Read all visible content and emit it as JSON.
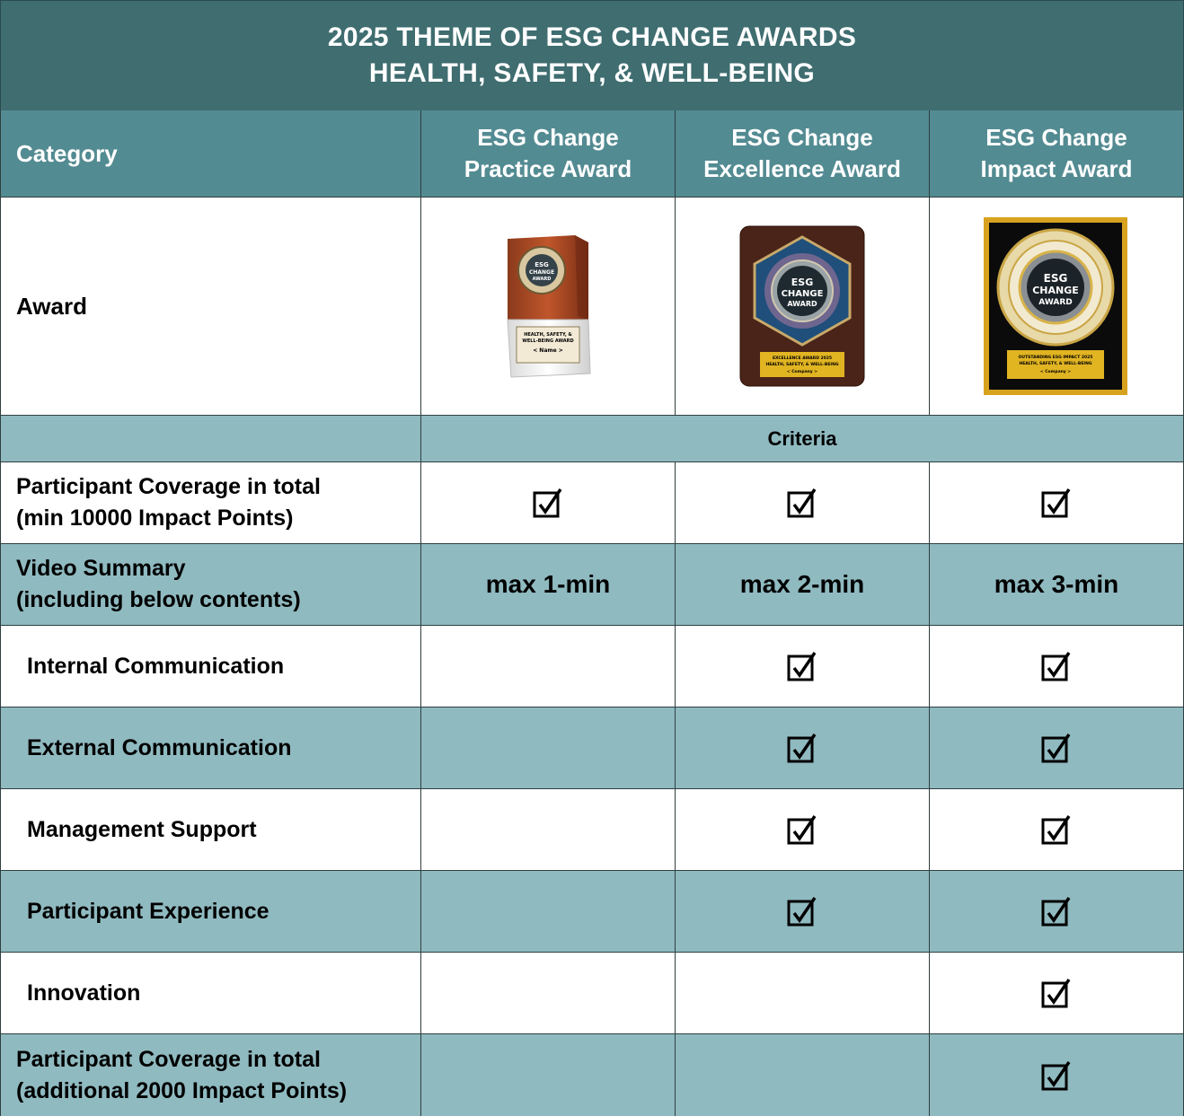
{
  "banner": {
    "line1": "2025 THEME OF ESG CHANGE AWARDS",
    "line2": "HEALTH, SAFETY, & WELL-BEING"
  },
  "header": {
    "category": "Category",
    "columns": [
      {
        "line1": "ESG Change",
        "line2": "Practice Award"
      },
      {
        "line1": "ESG Change",
        "line2": "Excellence Award"
      },
      {
        "line1": "ESG Change",
        "line2": "Impact Award"
      }
    ]
  },
  "award_row": {
    "label": "Award",
    "images": [
      {
        "icon": "practice-award-trophy-icon",
        "seal_lines": [
          "ESG",
          "CHANGE",
          "AWARD"
        ],
        "plate_lines": [
          "HEALTH, SAFETY, &",
          "WELL-BEING AWARD",
          "< Name >"
        ]
      },
      {
        "icon": "excellence-award-plaque-icon",
        "seal_lines": [
          "ESG",
          "CHANGE",
          "AWARD"
        ],
        "plate_lines": [
          "EXCELLENCE AWARD 2025",
          "HEALTH, SAFETY, & WELL-BEING",
          "< Company >"
        ]
      },
      {
        "icon": "impact-award-frame-icon",
        "seal_lines": [
          "ESG",
          "CHANGE",
          "AWARD"
        ],
        "plate_lines": [
          "OUTSTANDING ESG IMPACT 2025",
          "HEALTH, SAFETY, & WELL-BEING",
          "< Company >"
        ]
      }
    ]
  },
  "criteria_label": "Criteria",
  "rows": [
    {
      "label_line1": "Participant Coverage in total",
      "label_line2": "(min 10000 Impact Points)",
      "indent": false,
      "cells": [
        "check",
        "check",
        "check"
      ]
    },
    {
      "label_line1": "Video Summary",
      "label_line2": "(including below contents)",
      "indent": false,
      "cells": [
        "max 1-min",
        "max 2-min",
        "max 3-min"
      ]
    },
    {
      "label_line1": "Internal Communication",
      "indent": true,
      "cells": [
        "",
        "check",
        "check"
      ]
    },
    {
      "label_line1": "External Communication",
      "indent": true,
      "cells": [
        "",
        "check",
        "check"
      ]
    },
    {
      "label_line1": "Management Support",
      "indent": true,
      "cells": [
        "",
        "check",
        "check"
      ]
    },
    {
      "label_line1": "Participant Experience",
      "indent": true,
      "cells": [
        "",
        "check",
        "check"
      ]
    },
    {
      "label_line1": "Innovation",
      "indent": true,
      "cells": [
        "",
        "",
        "check"
      ]
    },
    {
      "label_line1": "Participant Coverage in total",
      "label_line2": "(additional 2000 Impact Points)",
      "indent": false,
      "cells": [
        "",
        "",
        "check"
      ]
    }
  ],
  "colors": {
    "banner_bg": "#3f6d70",
    "header_bg": "#538b92",
    "alt_row_bg": "#8fbac0",
    "white_row_bg": "#ffffff"
  }
}
